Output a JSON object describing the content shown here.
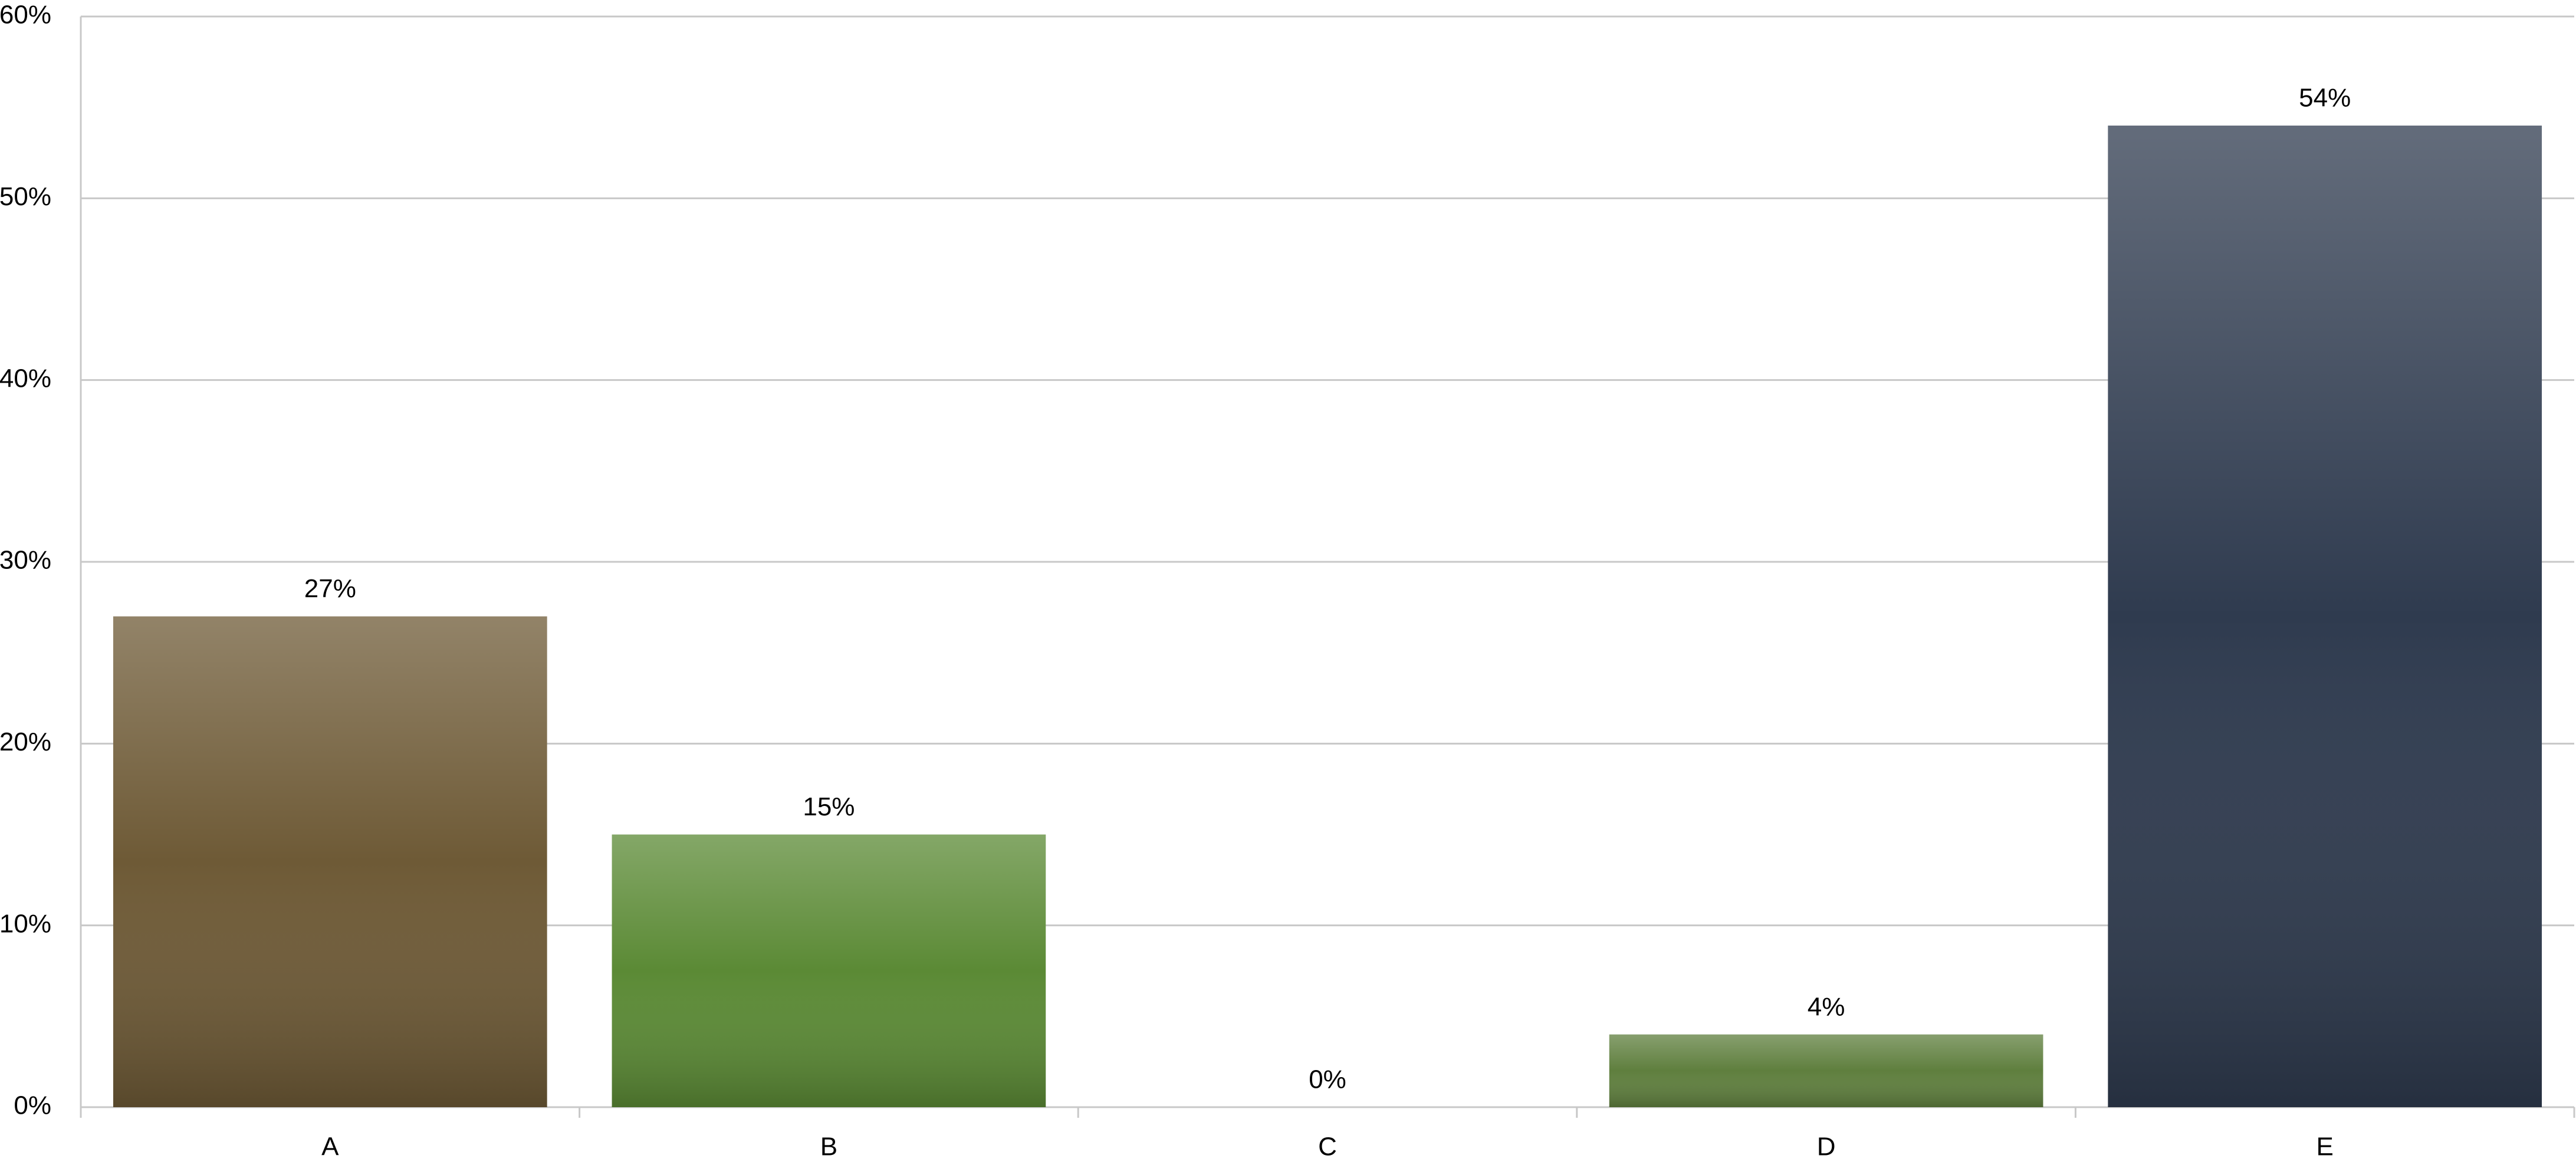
{
  "chart_data": {
    "type": "bar",
    "categories": [
      "A",
      "B",
      "C",
      "D",
      "E"
    ],
    "values": [
      27,
      15,
      0,
      4,
      54
    ],
    "value_labels": [
      "27%",
      "15%",
      "0%",
      "4%",
      "54%"
    ],
    "colors": [
      "#6e5a36",
      "#5b8a35",
      "#7a9a4a",
      "#5f7f3e",
      "#2f3b4f"
    ],
    "ylim": [
      0,
      60
    ],
    "yticks": [
      {
        "value": 0,
        "label": "0%"
      },
      {
        "value": 10,
        "label": "10%"
      },
      {
        "value": 20,
        "label": "20%"
      },
      {
        "value": 30,
        "label": "30%"
      },
      {
        "value": 40,
        "label": "40%"
      },
      {
        "value": 50,
        "label": "50%"
      },
      {
        "value": 60,
        "label": "60%"
      }
    ],
    "grid": true
  }
}
